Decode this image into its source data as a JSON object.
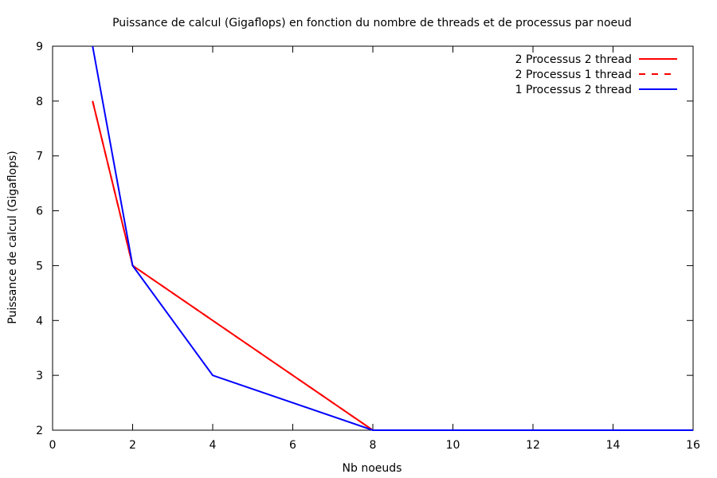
{
  "chart_data": {
    "type": "line",
    "title": "Puissance de calcul (Gigaflops) en fonction du nombre de threads et de processus par noeud",
    "xlabel": "Nb noeuds",
    "ylabel": "Puissance de calcul (Gigaflops)",
    "xlim": [
      0,
      16
    ],
    "ylim": [
      2,
      9
    ],
    "xticks": [
      0,
      2,
      4,
      6,
      8,
      10,
      12,
      14,
      16
    ],
    "yticks": [
      2,
      3,
      4,
      5,
      6,
      7,
      8,
      9
    ],
    "grid": false,
    "legend_position": "top-right",
    "series": [
      {
        "name": "2 Processus 2 thread",
        "color": "#ff0000",
        "dash": "solid",
        "x": [
          1,
          2,
          4,
          8,
          16
        ],
        "y": [
          8,
          5,
          4,
          2,
          2
        ]
      },
      {
        "name": "2 Processus 1 thread",
        "color": "#ff0000",
        "dash": "dashed",
        "x": [
          1,
          2,
          4,
          8,
          16
        ],
        "y": [
          8,
          5,
          4,
          2,
          2
        ]
      },
      {
        "name": "1 Processus 2 thread",
        "color": "#0000ff",
        "dash": "solid",
        "x": [
          1,
          2,
          4,
          8,
          16
        ],
        "y": [
          9,
          5,
          3,
          2,
          2
        ]
      }
    ]
  }
}
